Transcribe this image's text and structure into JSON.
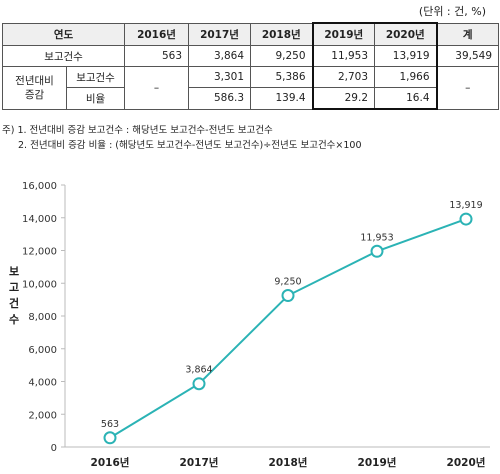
{
  "unit_note": "(단위 : 건, %)",
  "table": {
    "header": [
      "연도",
      "2016년",
      "2017년",
      "2018년",
      "2019년",
      "2020년",
      "계"
    ],
    "row1": {
      "label": "보고건수",
      "values": [
        "563",
        "3,864",
        "9,250",
        "11,953",
        "13,919",
        "39,549"
      ]
    },
    "group_label_1": "전년대비",
    "group_label_2": "증감",
    "row2": {
      "label": "보고건수",
      "dash_left": "–",
      "values": [
        "3,301",
        "5,386",
        "2,703",
        "1,966"
      ],
      "dash_right": "–"
    },
    "row3": {
      "label": "비율",
      "values": [
        "586.3",
        "139.4",
        "29.2",
        "16.4"
      ]
    }
  },
  "notes": [
    "주) 1. 전년대비 증감 보고건수 : 해당년도 보고건수-전년도 보고건수",
    "2. 전년대비 증감 비율 : (해당년도 보고건수-전년도 보고건수)÷전년도 보고건수×100"
  ],
  "chart_data": {
    "type": "line",
    "categories": [
      "2016년",
      "2017년",
      "2018년",
      "2019년",
      "2020년"
    ],
    "series": [
      {
        "values": [
          563,
          3864,
          9250,
          11953,
          13919
        ]
      }
    ],
    "data_labels": [
      "563",
      "3,864",
      "9,250",
      "11,953",
      "13,919"
    ],
    "ylabel": "보고건수",
    "ylim": [
      0,
      16000
    ],
    "yticks": [
      0,
      2000,
      4000,
      6000,
      8000,
      10000,
      12000,
      14000,
      16000
    ],
    "ytick_labels": [
      "0",
      "2,000",
      "4,000",
      "6,000",
      "8,000",
      "10,000",
      "12,000",
      "14,000",
      "16,000"
    ],
    "grid": false,
    "line_color": "#2bb3b5"
  }
}
